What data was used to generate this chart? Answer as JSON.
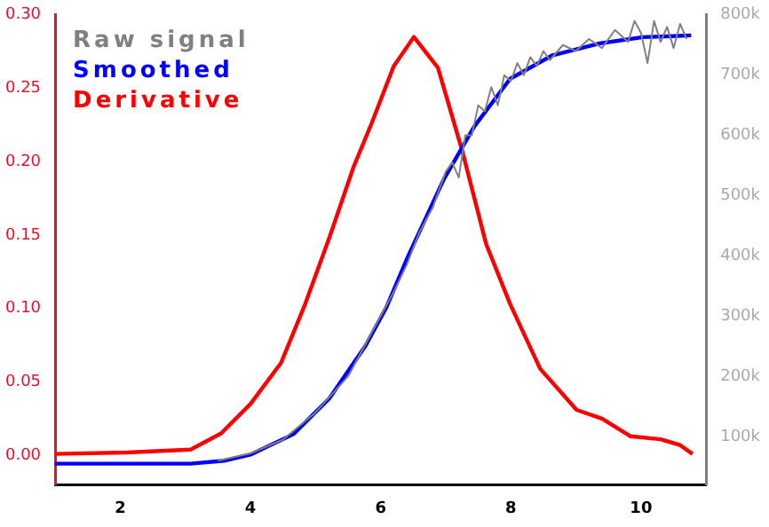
{
  "chart_data": {
    "type": "line",
    "legend": "top left",
    "grid": false,
    "marker": "none",
    "line_style": "solid",
    "xlim": [
      1,
      11
    ],
    "xticks": [
      2,
      4,
      6,
      8,
      10
    ],
    "ylim": [
      -0.02,
      0.3
    ],
    "yticks": [
      {
        "value": 0,
        "label": "0.00"
      },
      {
        "value": 0.05,
        "label": "0.05"
      },
      {
        "value": 0.1,
        "label": "0.10"
      },
      {
        "value": 0.15,
        "label": "0.15"
      },
      {
        "value": 0.2,
        "label": "0.20"
      },
      {
        "value": 0.25,
        "label": "0.25"
      },
      {
        "value": 0.3,
        "label": "0.30"
      }
    ],
    "y2lim": [
      20000,
      800000
    ],
    "y2ticks": [
      {
        "value": 100000,
        "label": "100k"
      },
      {
        "value": 200000,
        "label": "200k"
      },
      {
        "value": 300000,
        "label": "300k"
      },
      {
        "value": 400000,
        "label": "400k"
      },
      {
        "value": 500000,
        "label": "500k"
      },
      {
        "value": 600000,
        "label": "600k"
      },
      {
        "value": 700000,
        "label": "700k"
      },
      {
        "value": 800000,
        "label": "800k"
      }
    ],
    "series": [
      {
        "name": "Raw signal",
        "color": "#808080",
        "axis": "y2",
        "x": [
          3.5,
          4.0,
          4.5,
          5.0,
          5.5,
          6.0,
          6.2,
          6.4,
          6.6,
          6.8,
          7.0,
          7.1,
          7.2,
          7.3,
          7.4,
          7.5,
          7.6,
          7.7,
          7.8,
          7.9,
          8.0,
          8.1,
          8.2,
          8.3,
          8.4,
          8.5,
          8.6,
          8.8,
          9.0,
          9.2,
          9.4,
          9.6,
          9.8,
          9.9,
          10.0,
          10.1,
          10.2,
          10.3,
          10.4,
          10.5,
          10.6,
          10.7
        ],
        "values": [
          60000,
          72000,
          95000,
          140000,
          200000,
          300000,
          340000,
          385000,
          440000,
          480000,
          540000,
          555000,
          530000,
          600000,
          600000,
          650000,
          640000,
          680000,
          650000,
          700000,
          690000,
          720000,
          700000,
          730000,
          715000,
          740000,
          725000,
          750000,
          740000,
          760000,
          745000,
          775000,
          755000,
          790000,
          770000,
          720000,
          790000,
          755000,
          780000,
          745000,
          785000,
          760000
        ]
      },
      {
        "name": "Smoothed",
        "color": "#0000ff",
        "axis": "y2",
        "x": [
          1.0,
          2.0,
          3.08,
          3.6,
          4.0,
          4.66,
          5.21,
          5.77,
          6.09,
          6.42,
          6.97,
          7.44,
          7.99,
          8.64,
          9.38,
          10.03,
          10.77
        ],
        "values": [
          55000,
          55000,
          55000,
          60000,
          70000,
          104000,
          163000,
          251000,
          315000,
          399000,
          527000,
          615000,
          694000,
          733000,
          753000,
          763000,
          766000
        ]
      },
      {
        "name": "Derivative",
        "color": "#ff0000",
        "axis": "y",
        "x": [
          1.0,
          2.1,
          3.08,
          3.55,
          4.0,
          4.47,
          4.84,
          5.21,
          5.58,
          5.86,
          6.2,
          6.51,
          6.88,
          7.25,
          7.62,
          7.99,
          8.45,
          9.01,
          9.4,
          9.84,
          10.3,
          10.6,
          10.79
        ],
        "values": [
          0.001,
          0.002,
          0.004,
          0.015,
          0.035,
          0.063,
          0.103,
          0.148,
          0.196,
          0.226,
          0.265,
          0.285,
          0.264,
          0.208,
          0.144,
          0.103,
          0.059,
          0.031,
          0.025,
          0.013,
          0.011,
          0.007,
          0.001
        ]
      }
    ]
  }
}
